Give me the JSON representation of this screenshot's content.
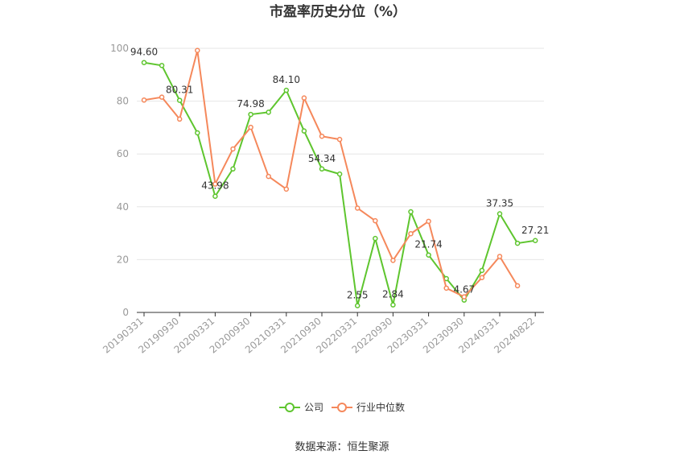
{
  "chart_data": {
    "type": "line",
    "title": "市盈率历史分位（%）",
    "xlabel": "",
    "ylabel": "",
    "ylim": [
      0,
      100
    ],
    "yticks": [
      0,
      20,
      40,
      60,
      80,
      100
    ],
    "grid": true,
    "legend_position": "bottom",
    "x_tick_labels": [
      "20190331",
      "20190930",
      "20200331",
      "20200930",
      "20210331",
      "20210930",
      "20220331",
      "20220930",
      "20230331",
      "20230930",
      "20240331",
      "20240822"
    ],
    "series": [
      {
        "name": "公司",
        "color": "#5ec52e",
        "values": [
          94.6,
          93.5,
          80.31,
          68.0,
          43.98,
          54.34,
          74.98,
          75.8,
          84.1,
          68.7,
          54.34,
          52.4,
          2.55,
          28.0,
          2.84,
          38.1,
          21.74,
          12.8,
          4.67,
          15.9,
          37.35,
          26.2,
          27.21
        ]
      },
      {
        "name": "行业中位数",
        "color": "#f5885b",
        "values": [
          80.4,
          81.5,
          73.2,
          99.2,
          48.6,
          61.9,
          70.1,
          51.5,
          46.7,
          81.2,
          66.7,
          65.5,
          39.5,
          34.7,
          19.7,
          29.8,
          34.5,
          9.2,
          5.9,
          13.2,
          21.2,
          10.1
        ]
      }
    ],
    "annotations": [
      {
        "series": 0,
        "index": 0,
        "text": "94.60"
      },
      {
        "series": 0,
        "index": 2,
        "text": "80.31"
      },
      {
        "series": 0,
        "index": 4,
        "text": "43.98"
      },
      {
        "series": 0,
        "index": 6,
        "text": "74.98"
      },
      {
        "series": 0,
        "index": 8,
        "text": "84.10"
      },
      {
        "series": 0,
        "index": 10,
        "text": "54.34"
      },
      {
        "series": 0,
        "index": 12,
        "text": "2.55"
      },
      {
        "series": 0,
        "index": 14,
        "text": "2.84"
      },
      {
        "series": 0,
        "index": 16,
        "text": "21.74"
      },
      {
        "series": 0,
        "index": 18,
        "text": "4.67"
      },
      {
        "series": 0,
        "index": 20,
        "text": "37.35"
      },
      {
        "series": 0,
        "index": 22,
        "text": "27.21"
      }
    ]
  },
  "legend": [
    {
      "label": "公司",
      "color": "#5ec52e"
    },
    {
      "label": "行业中位数",
      "color": "#f5885b"
    }
  ],
  "source": "数据来源：恒生聚源"
}
